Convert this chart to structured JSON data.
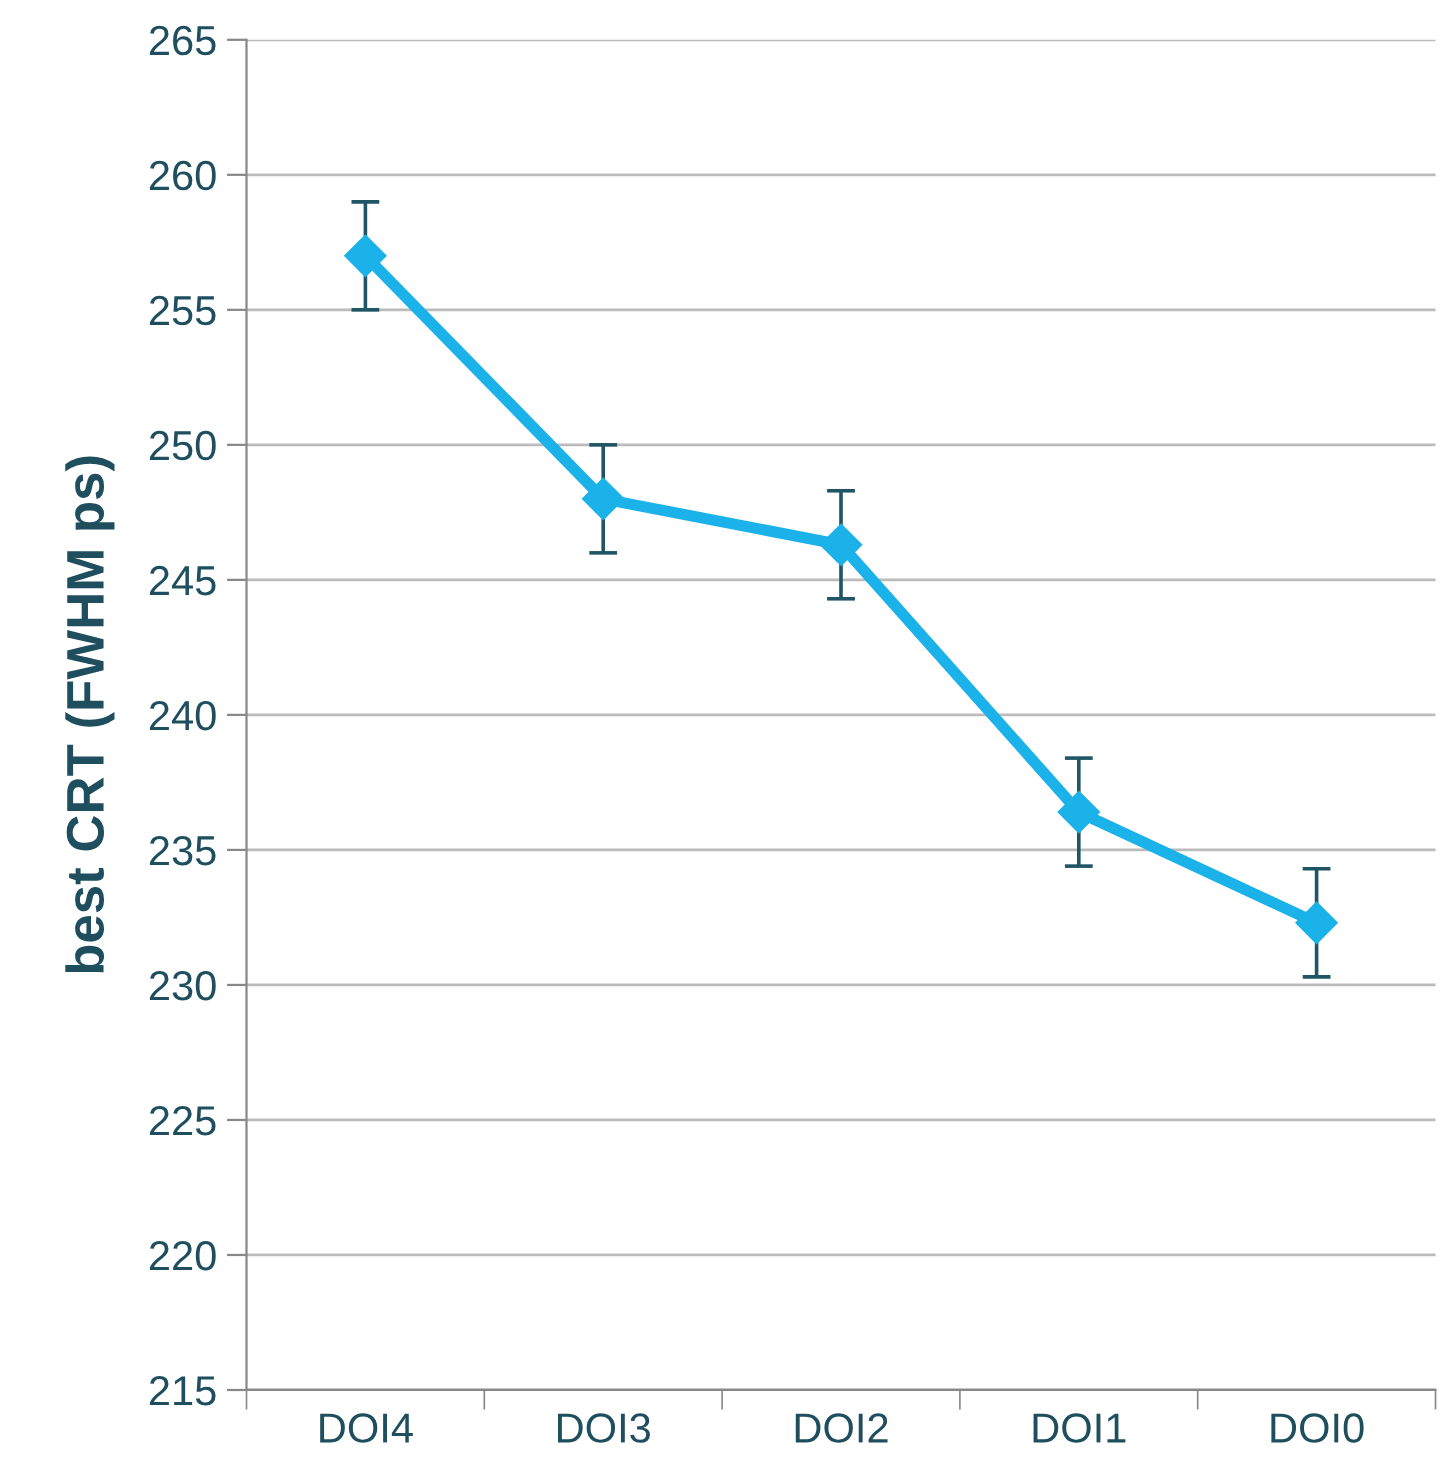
{
  "chart_data": {
    "type": "line",
    "ylabel": "best CRT (FWHM ps)",
    "categories": [
      "DOI4",
      "DOI3",
      "DOI2",
      "DOI1",
      "DOI0"
    ],
    "series": [
      {
        "color": "#1ab2e8",
        "values": [
          257,
          248,
          246.3,
          236.4,
          232.3
        ],
        "errors": [
          2,
          2,
          2,
          2,
          2
        ]
      }
    ],
    "ylim": [
      215,
      265
    ],
    "yticks": [
      215,
      220,
      225,
      230,
      235,
      240,
      245,
      250,
      255,
      260,
      265
    ],
    "grid": "y",
    "marker": "diamond",
    "line_style": "solid"
  }
}
